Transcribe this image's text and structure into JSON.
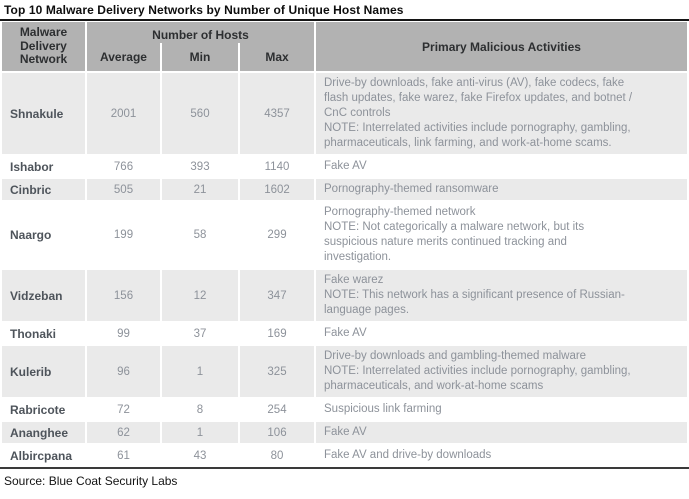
{
  "title": "Top 10 Malware Delivery Networks by Number of Unique Host Names",
  "source": "Source: Blue Coat Security Labs",
  "colors": {
    "header_bg": "#b2b2b2",
    "stripe_bg": "#eaeaea",
    "body_text": "#8d929a",
    "network_text": "#4e545b",
    "rule": "#141414"
  },
  "table": {
    "headers": {
      "network": "Malware Delivery Network",
      "hosts_group": "Number of Hosts",
      "average": "Average",
      "min": "Min",
      "max": "Max",
      "activities": "Primary Malicious Activities"
    },
    "rows": [
      {
        "network": "Shnakule",
        "average": "2001",
        "min": "560",
        "max": "4357",
        "activities": "Drive-by downloads, fake anti-virus (AV), fake codecs, fake\nflash updates, fake warez, fake Firefox updates, and botnet /\nCnC controls\nNOTE: Interrelated activities include pornography, gambling,\npharmaceuticals, link farming, and work-at-home scams."
      },
      {
        "network": "Ishabor",
        "average": "766",
        "min": "393",
        "max": "1140",
        "activities": "Fake AV"
      },
      {
        "network": "Cinbric",
        "average": "505",
        "min": "21",
        "max": "1602",
        "activities": "Pornography-themed ransomware"
      },
      {
        "network": "Naargo",
        "average": "199",
        "min": "58",
        "max": "299",
        "activities": "Pornography-themed network\nNOTE: Not categorically a malware network, but its\nsuspicious nature merits continued tracking and\ninvestigation."
      },
      {
        "network": "Vidzeban",
        "average": "156",
        "min": "12",
        "max": "347",
        "activities": "Fake warez\nNOTE: This network has a significant presence of Russian-\nlanguage pages."
      },
      {
        "network": "Thonaki",
        "average": "99",
        "min": "37",
        "max": "169",
        "activities": "Fake AV"
      },
      {
        "network": "Kulerib",
        "average": "96",
        "min": "1",
        "max": "325",
        "activities": "Drive-by downloads and gambling-themed malware\nNOTE: Interrelated activities include pornography, gambling,\npharmaceuticals, and work-at-home scams"
      },
      {
        "network": "Rabricote",
        "average": "72",
        "min": "8",
        "max": "254",
        "activities": "Suspicious link farming"
      },
      {
        "network": "Ananghee",
        "average": "62",
        "min": "1",
        "max": "106",
        "activities": "Fake AV"
      },
      {
        "network": "Albircpana",
        "average": "61",
        "min": "43",
        "max": "80",
        "activities": "Fake AV and drive-by downloads"
      }
    ]
  }
}
